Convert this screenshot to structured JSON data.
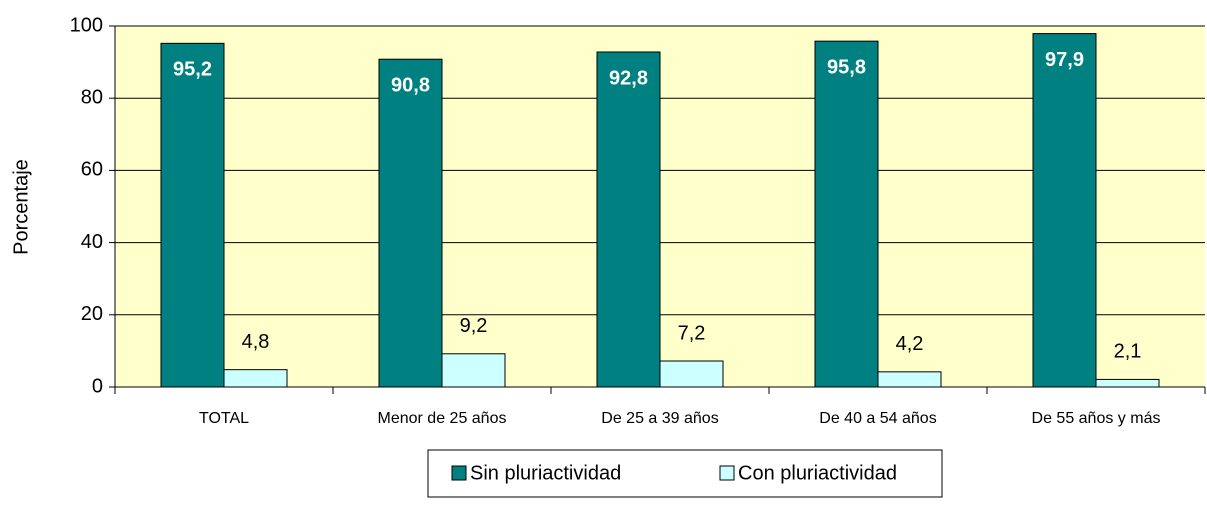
{
  "chart_data": {
    "type": "bar",
    "y_label": "Porcentaje",
    "categories": [
      "TOTAL",
      "Menor de 25 años",
      "De 25 a 39 años",
      "De 40 a 54 años",
      "De 55 años y más"
    ],
    "series": [
      {
        "name": "Sin pluriactividad",
        "color": "#008080",
        "values": [
          95.2,
          90.8,
          92.8,
          95.8,
          97.9
        ],
        "value_labels": [
          "95,2",
          "90,8",
          "92,8",
          "95,8",
          "97,9"
        ]
      },
      {
        "name": "Con pluriactividad",
        "color": "#ccffff",
        "values": [
          4.8,
          9.2,
          7.2,
          4.2,
          2.1
        ],
        "value_labels": [
          "4,8",
          "9,2",
          "7,2",
          "4,2",
          "2,1"
        ]
      }
    ],
    "ylim": [
      0,
      100
    ],
    "yticks": [
      0,
      20,
      40,
      60,
      80,
      100
    ],
    "grid": true,
    "legend": "bottom"
  }
}
